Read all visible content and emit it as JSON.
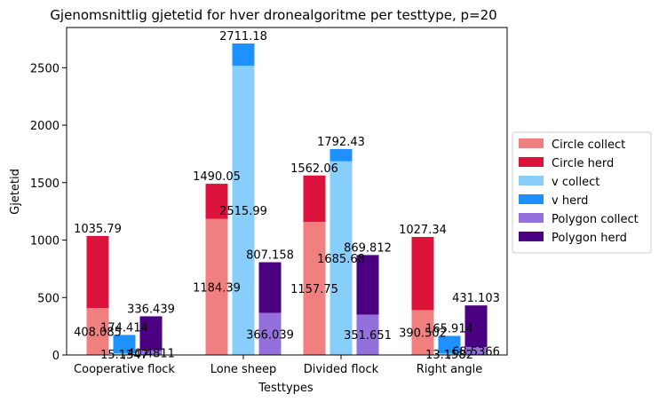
{
  "chart_data": {
    "type": "bar",
    "title": "Gjenomsnittlig gjetetid for hver dronealgoritme per testtype, p=20",
    "xlabel": "Testtypes",
    "ylabel": "Gjetetid",
    "categories": [
      "Cooperative flock",
      "Lone sheep",
      "Divided flock",
      "Right angle"
    ],
    "ylim": [
      0,
      2850
    ],
    "yticks": [
      0,
      500,
      1000,
      1500,
      2000,
      2500
    ],
    "stacked_groups": [
      {
        "name": "Circle",
        "collect": {
          "name": "Circle collect",
          "color": "#f08080",
          "values": [
            408.085,
            1184.39,
            1157.75,
            390.502
          ]
        },
        "herd": {
          "name": "Circle herd",
          "color": "#dc143c",
          "totals": [
            1035.79,
            1490.05,
            1562.06,
            1027.34
          ]
        }
      },
      {
        "name": "v",
        "collect": {
          "name": "v collect",
          "color": "#87cefa",
          "values": [
            15.1347,
            2515.99,
            1685.68,
            13.1582
          ]
        },
        "herd": {
          "name": "v herd",
          "color": "#1e90ff",
          "totals": [
            174.414,
            2711.18,
            1792.43,
            165.914
          ]
        }
      },
      {
        "name": "Polygon",
        "collect": {
          "name": "Polygon collect",
          "color": "#9370db",
          "values": [
            40.4811,
            366.039,
            351.651,
            68.5366
          ]
        },
        "herd": {
          "name": "Polygon herd",
          "color": "#4b0082",
          "totals": [
            336.439,
            807.158,
            869.812,
            431.103
          ]
        }
      }
    ],
    "collect_label_text": [
      [
        "408.085",
        "1184.39",
        "1157.75",
        "390.502"
      ],
      [
        "15.1347",
        "2515.99",
        "1685.68",
        "13.1582"
      ],
      [
        "40.4811",
        "366.039",
        "351.651",
        "68.5366"
      ]
    ],
    "herd_label_text": [
      [
        "1035.79",
        "1490.05",
        "1562.06",
        "1027.34"
      ],
      [
        "174.414",
        "2711.18",
        "1792.43",
        "165.914"
      ],
      [
        "336.439",
        "807.158",
        "869.812",
        "431.103"
      ]
    ],
    "legend": [
      "Circle collect",
      "Circle herd",
      "v collect",
      "v herd",
      "Polygon collect",
      "Polygon herd"
    ],
    "legend_position": "center-right",
    "grid": false
  }
}
